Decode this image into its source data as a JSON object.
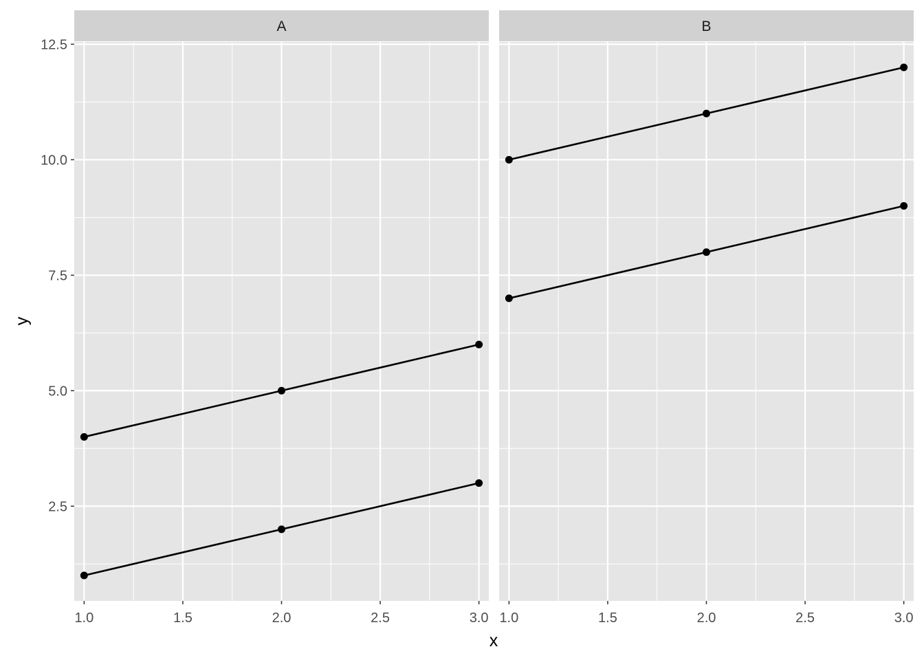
{
  "chart_data": {
    "type": "line",
    "xlabel": "x",
    "ylabel": "y",
    "x_ticks": [
      1.0,
      1.5,
      2.0,
      2.5,
      3.0
    ],
    "x_tick_labels": [
      "1.0",
      "1.5",
      "2.0",
      "2.5",
      "3.0"
    ],
    "y_ticks": [
      2.5,
      5.0,
      7.5,
      10.0,
      12.5
    ],
    "y_tick_labels": [
      "2.5",
      "5.0",
      "7.5",
      "10.0",
      "12.5"
    ],
    "xlim": [
      0.95,
      3.05
    ],
    "ylim": [
      0.45,
      12.55
    ],
    "grid": true,
    "colors": {
      "panel_background": "#e5e5e5",
      "strip_background": "#d1d1d1",
      "grid_line": "#ffffff",
      "series": "#000000"
    },
    "panels": [
      {
        "facet": "A",
        "series": [
          {
            "x": [
              1,
              2,
              3
            ],
            "y": [
              1,
              2,
              3
            ]
          },
          {
            "x": [
              1,
              2,
              3
            ],
            "y": [
              4,
              5,
              6
            ]
          }
        ]
      },
      {
        "facet": "B",
        "series": [
          {
            "x": [
              1,
              2,
              3
            ],
            "y": [
              7,
              8,
              9
            ]
          },
          {
            "x": [
              1,
              2,
              3
            ],
            "y": [
              10,
              11,
              12
            ]
          }
        ]
      }
    ]
  }
}
